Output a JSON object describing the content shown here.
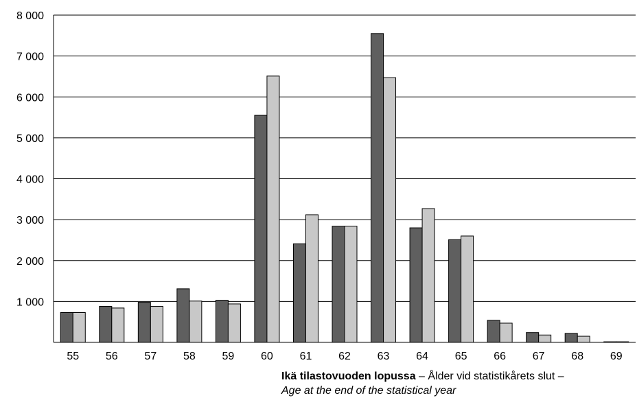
{
  "chart_data": {
    "type": "bar",
    "title": "",
    "categories": [
      "55",
      "56",
      "57",
      "58",
      "59",
      "60",
      "61",
      "62",
      "63",
      "64",
      "65",
      "66",
      "67",
      "68",
      "69"
    ],
    "series": [
      {
        "color": "#5f5f5f",
        "values": [
          730,
          880,
          980,
          1310,
          1030,
          5550,
          2410,
          2840,
          7550,
          2800,
          2510,
          540,
          240,
          220,
          15
        ]
      },
      {
        "color": "#c8c8c8",
        "values": [
          730,
          840,
          880,
          1010,
          940,
          6510,
          3120,
          2840,
          6470,
          3270,
          2600,
          470,
          180,
          150,
          15
        ]
      }
    ],
    "ylim": [
      0,
      8000
    ],
    "yticks": [
      1000,
      2000,
      3000,
      4000,
      5000,
      6000,
      7000,
      8000
    ],
    "ytick_labels": [
      "1 000",
      "2 000",
      "3 000",
      "4 000",
      "5 000",
      "6 000",
      "7 000",
      "8 000"
    ],
    "grid": true,
    "xlabel": {
      "bold": "Ikä tilastovuoden lopussa",
      "regular": " – Ålder vid statistikårets slut –",
      "italic": "Age at the end of the statistical year"
    }
  }
}
